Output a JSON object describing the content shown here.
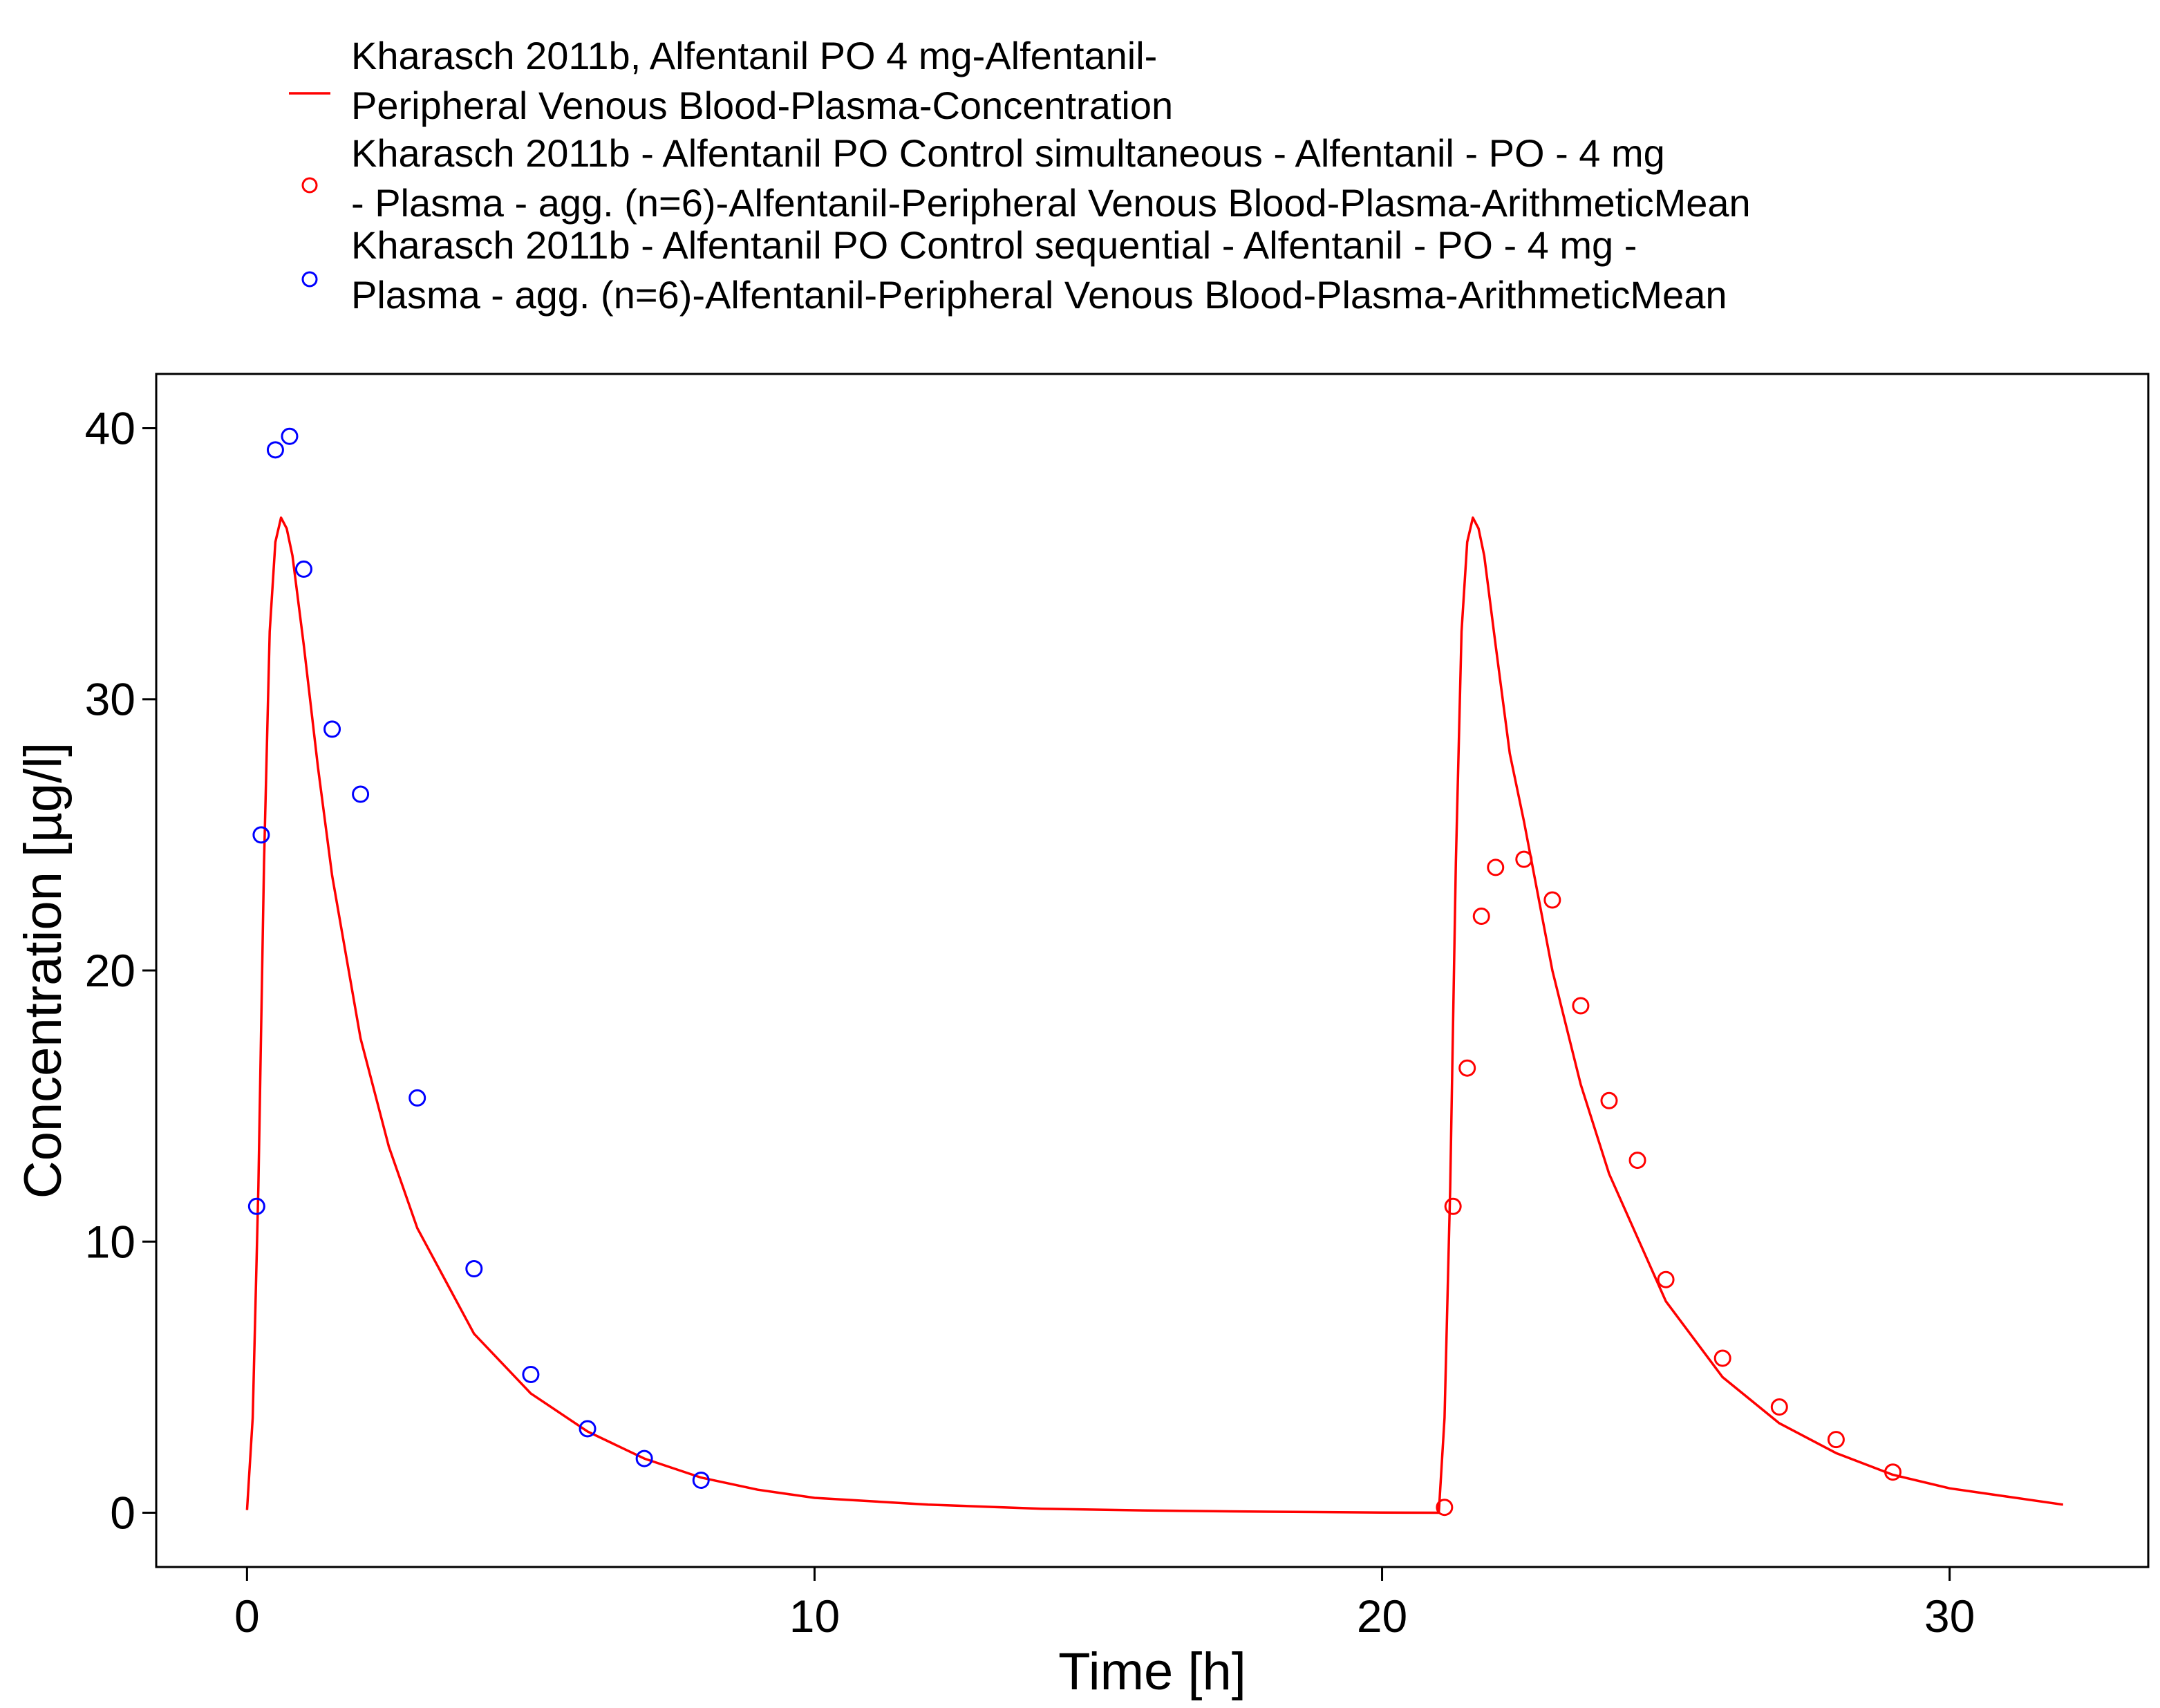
{
  "chart_data": {
    "type": "line",
    "xlabel": "Time [h]",
    "ylabel": "Concentration [µg/l]",
    "xlim": [
      -1.6,
      33.5
    ],
    "ylim": [
      -2,
      42
    ],
    "xticks": [
      0,
      10,
      20,
      30
    ],
    "yticks": [
      0,
      10,
      20,
      30,
      40
    ],
    "grid": false,
    "legend_position": "top",
    "series": [
      {
        "name_lines": [
          "Kharasch 2011b, Alfentanil PO 4 mg-Alfentanil-",
          "Peripheral Venous Blood-Plasma-Concentration"
        ],
        "kind": "line",
        "color": "#ff0000",
        "x": [
          0,
          0.1,
          0.2,
          0.3,
          0.4,
          0.5,
          0.6,
          0.7,
          0.8,
          1.0,
          1.25,
          1.5,
          2.0,
          2.5,
          3.0,
          4.0,
          5.0,
          6.0,
          7.0,
          8.0,
          9.0,
          10.0,
          12.0,
          14.0,
          16.0,
          18.0,
          20.0,
          21.0,
          21.1,
          21.2,
          21.3,
          21.4,
          21.5,
          21.6,
          21.7,
          21.8,
          22.0,
          22.25,
          22.5,
          23.0,
          23.5,
          24.0,
          25.0,
          26.0,
          27.0,
          28.0,
          29.0,
          30.0,
          31.0,
          32.0
        ],
        "y": [
          0.1,
          3.5,
          12.0,
          24.0,
          32.5,
          35.8,
          36.7,
          36.3,
          35.3,
          32.0,
          27.5,
          23.5,
          17.5,
          13.5,
          10.5,
          6.6,
          4.4,
          3.0,
          2.0,
          1.3,
          0.85,
          0.55,
          0.3,
          0.15,
          0.08,
          0.04,
          0.01,
          0.0,
          3.5,
          12.0,
          24.0,
          32.5,
          35.8,
          36.7,
          36.3,
          35.3,
          32.0,
          28.0,
          25.5,
          20.0,
          15.8,
          12.5,
          7.8,
          5.0,
          3.3,
          2.2,
          1.4,
          0.9,
          0.6,
          0.3
        ]
      },
      {
        "name_lines": [
          "Kharasch 2011b - Alfentanil PO Control simultaneous - Alfentanil - PO - 4 mg",
          "- Plasma - agg. (n=6)-Alfentanil-Peripheral Venous Blood-Plasma-ArithmeticMean"
        ],
        "kind": "scatter",
        "color": "#ff0000",
        "x": [
          21.1,
          21.25,
          21.5,
          21.75,
          22.0,
          22.5,
          23.0,
          23.5,
          24.0,
          24.5,
          25.0,
          26.0,
          27.0,
          28.0,
          29.0
        ],
        "y": [
          0.2,
          11.3,
          16.4,
          22.0,
          23.8,
          24.1,
          22.6,
          18.7,
          15.2,
          13.0,
          8.6,
          5.7,
          3.9,
          2.7,
          1.5
        ]
      },
      {
        "name_lines": [
          "Kharasch 2011b - Alfentanil PO Control sequential - Alfentanil - PO - 4 mg -",
          " Plasma - agg. (n=6)-Alfentanil-Peripheral Venous Blood-Plasma-ArithmeticMean"
        ],
        "kind": "scatter",
        "color": "#0000ff",
        "x": [
          0.17,
          0.25,
          0.5,
          0.75,
          1.0,
          1.5,
          2.0,
          3.0,
          4.0,
          5.0,
          6.0,
          7.0,
          8.0
        ],
        "y": [
          11.3,
          25.0,
          39.2,
          39.7,
          34.8,
          28.9,
          26.5,
          15.3,
          9.0,
          5.1,
          3.1,
          2.0,
          1.2
        ]
      }
    ]
  }
}
